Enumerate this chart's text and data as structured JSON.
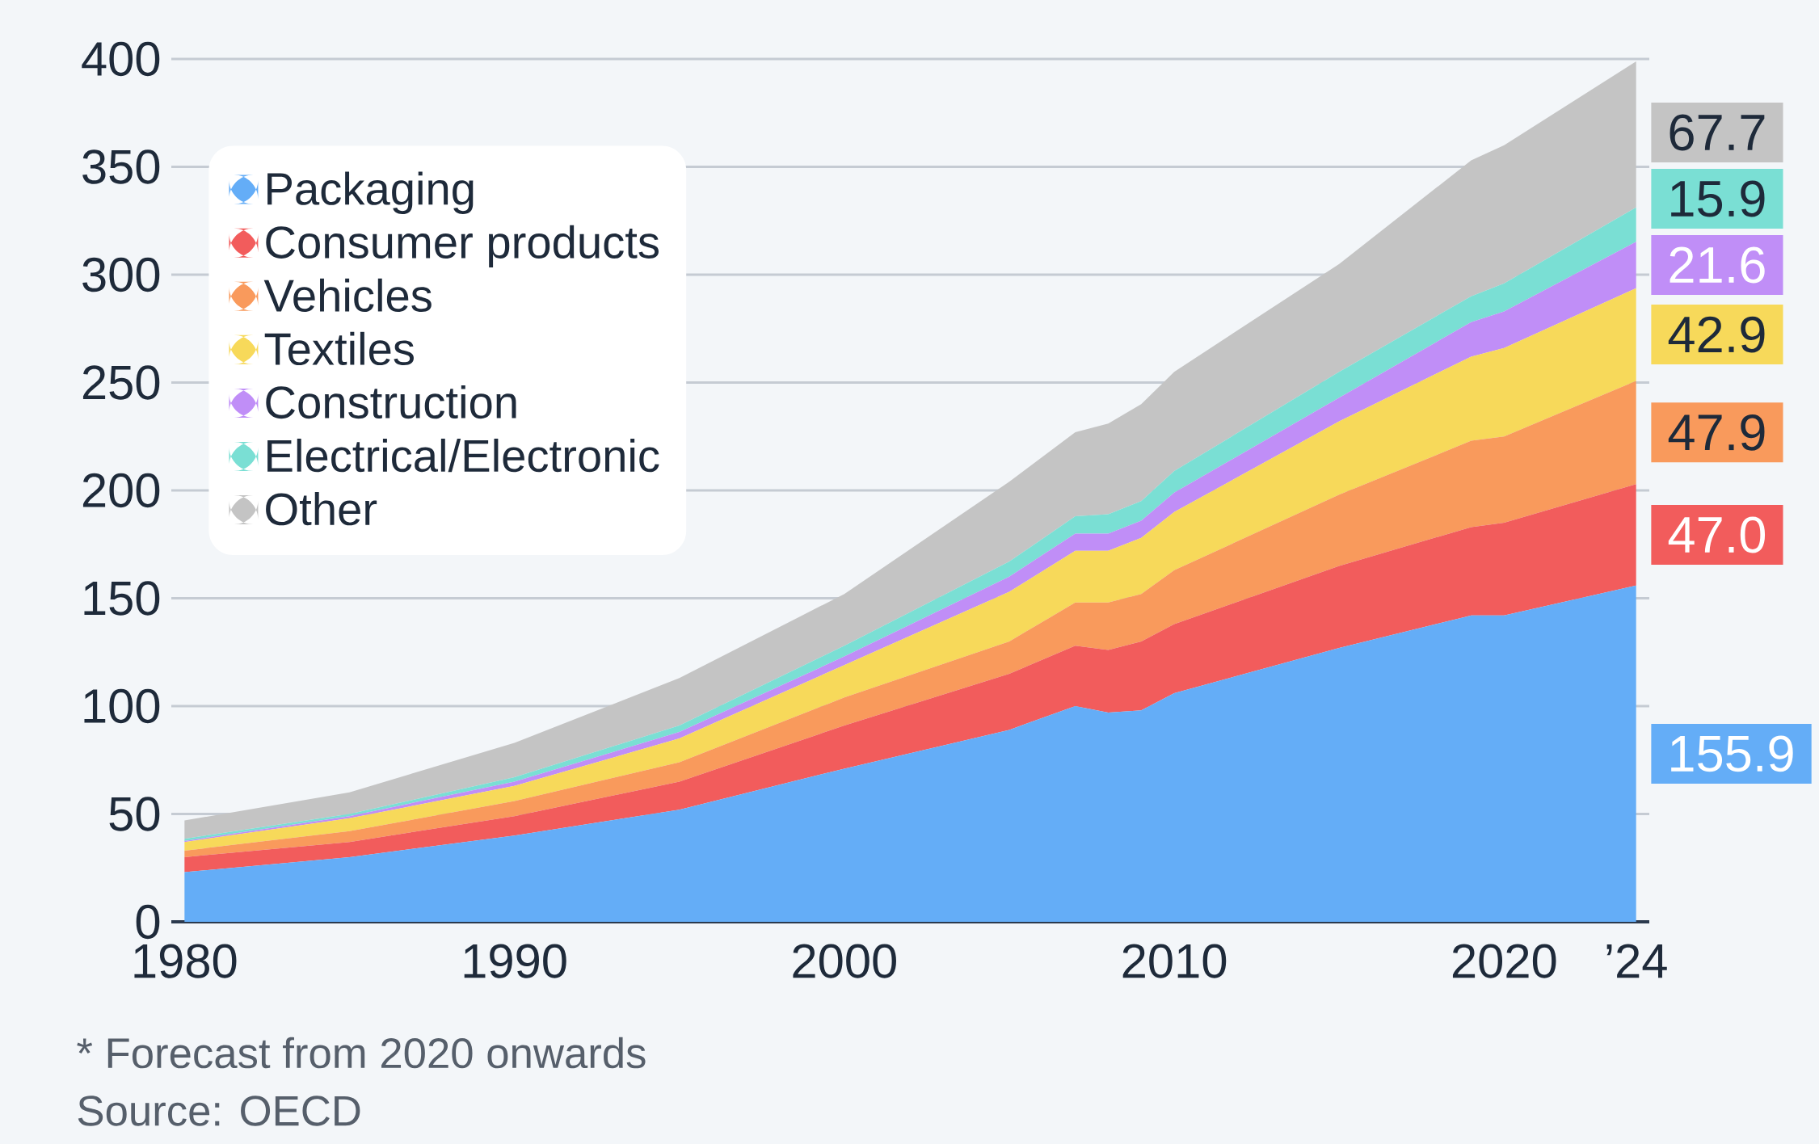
{
  "chart_data": {
    "type": "area",
    "stacked": true,
    "x": [
      1980,
      1985,
      1990,
      1995,
      2000,
      2005,
      2007,
      2008,
      2009,
      2010,
      2015,
      2019,
      2020,
      2024
    ],
    "series": [
      {
        "name": "Packaging",
        "color": "#64adf7",
        "values": [
          23,
          30,
          40,
          52,
          71,
          89,
          100,
          97,
          98,
          106,
          127,
          142,
          142,
          155.9
        ],
        "value_labels": [
          null,
          null,
          null,
          null,
          null,
          null,
          null,
          null,
          null,
          null,
          null,
          null,
          null,
          "155.9"
        ]
      },
      {
        "name": "Consumer products",
        "color": "#f25c5c",
        "values": [
          7,
          7,
          9,
          13,
          20,
          26,
          28,
          29,
          32,
          32,
          38,
          41,
          43,
          47.0
        ],
        "value_labels": [
          null,
          null,
          null,
          null,
          null,
          null,
          null,
          null,
          null,
          null,
          null,
          null,
          null,
          "47.0"
        ]
      },
      {
        "name": "Vehicles",
        "color": "#f99a5c",
        "values": [
          3,
          5,
          7,
          9,
          13,
          15,
          20,
          22,
          22,
          25,
          33,
          40,
          40,
          47.9
        ],
        "value_labels": [
          null,
          null,
          null,
          null,
          null,
          null,
          null,
          null,
          null,
          null,
          null,
          null,
          null,
          "47.9"
        ]
      },
      {
        "name": "Textiles",
        "color": "#f7d95a",
        "values": [
          4,
          6,
          7,
          11,
          15,
          23,
          24,
          24,
          26,
          27,
          34,
          39,
          41,
          42.9
        ],
        "value_labels": [
          null,
          null,
          null,
          null,
          null,
          null,
          null,
          null,
          null,
          null,
          null,
          null,
          null,
          "42.9"
        ]
      },
      {
        "name": "Construction",
        "color": "#c08ef7",
        "values": [
          0.5,
          1,
          2,
          3,
          4,
          7,
          8,
          8,
          8,
          9,
          11,
          16,
          17,
          21.6
        ],
        "value_labels": [
          null,
          null,
          null,
          null,
          null,
          null,
          null,
          null,
          null,
          null,
          null,
          null,
          null,
          "21.6"
        ]
      },
      {
        "name": "Electrical/Electronic",
        "color": "#7adfd4",
        "values": [
          1,
          1,
          2,
          3,
          5,
          7,
          8,
          9,
          9,
          10,
          12,
          12,
          13,
          15.9
        ],
        "value_labels": [
          null,
          null,
          null,
          null,
          null,
          null,
          null,
          null,
          null,
          null,
          null,
          null,
          null,
          "15.9"
        ]
      },
      {
        "name": "Other",
        "color": "#c4c4c4",
        "values": [
          8.5,
          10,
          16,
          22,
          24,
          37,
          39,
          42,
          45,
          46,
          50,
          63,
          64,
          67.7
        ],
        "value_labels": [
          null,
          null,
          null,
          null,
          null,
          null,
          null,
          null,
          null,
          null,
          null,
          null,
          null,
          "67.7"
        ]
      }
    ],
    "xlim": [
      1979.6,
      2024.4
    ],
    "xticks": [
      1980,
      1990,
      2000,
      2010,
      2020,
      {
        "value": 2024,
        "label": "’24"
      }
    ],
    "ylim": [
      0,
      400
    ],
    "yticks": [
      0,
      50,
      100,
      150,
      200,
      250,
      300,
      350,
      400
    ],
    "grid": "y",
    "legend": "top left",
    "annotations": [
      "* Forecast from 2020 onwards",
      "Source: OECD"
    ]
  }
}
